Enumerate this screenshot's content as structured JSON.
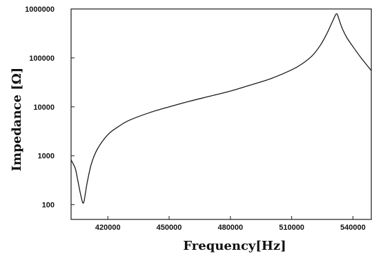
{
  "chart_data": {
    "type": "line",
    "title": "",
    "xlabel": "Frequency[Hz]",
    "ylabel": "Impedance [Ω]",
    "xlim": [
      402000,
      549000
    ],
    "ylim": [
      50,
      1000000
    ],
    "yscale": "log",
    "grid": false,
    "legend": "none",
    "x_ticks": [
      {
        "value": 420000,
        "label": "420000"
      },
      {
        "value": 450000,
        "label": "450000"
      },
      {
        "value": 480000,
        "label": "480000"
      },
      {
        "value": 510000,
        "label": "510000"
      },
      {
        "value": 540000,
        "label": "540000"
      }
    ],
    "y_ticks": [
      {
        "value": 100,
        "label": "100"
      },
      {
        "value": 1000,
        "label": "1000"
      },
      {
        "value": 10000,
        "label": "10000"
      },
      {
        "value": 100000,
        "label": "100000"
      },
      {
        "value": 1000000,
        "label": "1000000"
      }
    ],
    "series": [
      {
        "x": [
          402000,
          404000,
          405000,
          406000,
          407000,
          407600,
          408000,
          408400,
          409000,
          410000,
          412000,
          415000,
          420000,
          425000,
          430000,
          440000,
          450000,
          460000,
          470000,
          480000,
          490000,
          500000,
          510000,
          515000,
          520000,
          524000,
          527000,
          529000,
          530500,
          531500,
          532000,
          532500,
          533500,
          535000,
          537000,
          540000,
          544000,
          549000
        ],
        "y": [
          820,
          560,
          360,
          220,
          140,
          112,
          108,
          120,
          170,
          300,
          700,
          1400,
          2700,
          3900,
          5200,
          7500,
          10000,
          13000,
          16500,
          21000,
          28000,
          38000,
          57000,
          75000,
          110000,
          180000,
          300000,
          450000,
          620000,
          760000,
          800000,
          750000,
          560000,
          380000,
          260000,
          170000,
          100000,
          55000
        ],
        "color": "#1a1a1a"
      }
    ]
  }
}
